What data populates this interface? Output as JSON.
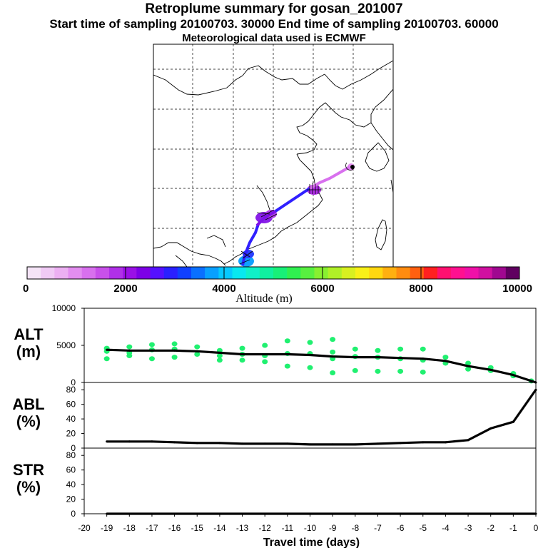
{
  "header": {
    "title": "Retroplume summary for gosan_201007",
    "subtitle": "Start time of sampling 20100703. 30000     End time of sampling 20100703. 60000",
    "met_line": "Meteorological data used is ECMWF"
  },
  "map": {
    "track_points": [
      [
        -0.001,
        0.0
      ],
      [
        -0.55,
        0.2
      ],
      [
        -1.0,
        0.4
      ]
    ],
    "labels": []
  },
  "colorbar": {
    "title": "Altitude (m)",
    "ticks": [
      "0",
      "2000",
      "4000",
      "6000",
      "8000",
      "10000"
    ],
    "colors": [
      "#f5e4f7",
      "#f0caf5",
      "#ecb0f2",
      "#e38ef0",
      "#d870ee",
      "#c850ea",
      "#b030e8",
      "#9a10e6",
      "#7d00e6",
      "#5510ff",
      "#2a20ff",
      "#1040ff",
      "#0a70ff",
      "#08a0ff",
      "#06c8ff",
      "#08e8f0",
      "#10f0c8",
      "#10f0a0",
      "#18f078",
      "#30f050",
      "#58f040",
      "#88f030",
      "#b0f028",
      "#d8f020",
      "#f8f018",
      "#ffd810",
      "#ffb010",
      "#ff8c10",
      "#ff6010",
      "#ff2020",
      "#ff1070",
      "#ff1090",
      "#f010a8",
      "#d010a0",
      "#a00890",
      "#600060"
    ]
  },
  "chart_data": [
    {
      "type": "line",
      "panel": "ALT",
      "ylabel_line1": "ALT",
      "ylabel_line2": "(m)",
      "ylim": [
        0,
        10000
      ],
      "yticks": [
        "0",
        "5000",
        "10000"
      ],
      "ytick_values": [
        0,
        5000,
        10000
      ],
      "x": [
        -19,
        -18,
        -17,
        -16,
        -15,
        -14,
        -13,
        -12,
        -11,
        -10,
        -9,
        -8,
        -7,
        -6,
        -5,
        -4,
        -3,
        -2,
        -1,
        0
      ],
      "values": [
        4400,
        4300,
        4300,
        4300,
        4200,
        4000,
        3800,
        3800,
        3800,
        3700,
        3500,
        3400,
        3400,
        3300,
        3200,
        2900,
        2200,
        1700,
        1000,
        0
      ],
      "scatter": {
        "x": [
          -19,
          -19,
          -19,
          -18,
          -18,
          -18,
          -17,
          -17,
          -17,
          -16,
          -16,
          -16,
          -15,
          -15,
          -14,
          -14,
          -14,
          -13,
          -13,
          -13,
          -12,
          -12,
          -12,
          -11,
          -11,
          -11,
          -10,
          -10,
          -10,
          -9,
          -9,
          -9,
          -9,
          -8,
          -8,
          -8,
          -7,
          -7,
          -7,
          -6,
          -6,
          -6,
          -5,
          -5,
          -5,
          -4,
          -4,
          -3,
          -3,
          -2,
          -2,
          -1,
          -1,
          -0.2
        ],
        "y": [
          4600,
          4200,
          3200,
          4800,
          4000,
          3600,
          5100,
          4400,
          3200,
          5200,
          4500,
          3400,
          4800,
          3800,
          4300,
          3600,
          3000,
          4600,
          3800,
          3000,
          5000,
          3600,
          2800,
          5600,
          3900,
          2200,
          5400,
          3900,
          2000,
          5800,
          4100,
          3200,
          1300,
          4500,
          3500,
          1600,
          4300,
          3400,
          1500,
          4500,
          3200,
          1500,
          4500,
          3000,
          1400,
          3400,
          2600,
          2600,
          1800,
          2000,
          1600,
          1200,
          900,
          200
        ]
      }
    },
    {
      "type": "line",
      "panel": "ABL",
      "ylabel_line1": "ABL",
      "ylabel_line2": "(%)",
      "ylim": [
        0,
        90
      ],
      "yticks": [
        "0",
        "20",
        "40",
        "60",
        "80"
      ],
      "ytick_values": [
        0,
        20,
        40,
        60,
        80
      ],
      "x": [
        -19,
        -18,
        -17,
        -16,
        -15,
        -14,
        -13,
        -12,
        -11,
        -10,
        -9,
        -8,
        -7,
        -6,
        -5,
        -4,
        -3,
        -2,
        -1,
        0
      ],
      "values": [
        9,
        9,
        9,
        8,
        7,
        7,
        6,
        6,
        6,
        5,
        5,
        5,
        6,
        7,
        8,
        8,
        11,
        27,
        36,
        80
      ]
    },
    {
      "type": "line",
      "panel": "STR",
      "ylabel_line1": "STR",
      "ylabel_line2": "(%)",
      "ylim": [
        0,
        90
      ],
      "yticks": [
        "0",
        "20",
        "40",
        "60",
        "80"
      ],
      "ytick_values": [
        0,
        20,
        40,
        60,
        80
      ],
      "x": [
        -19,
        0
      ],
      "values": [
        0,
        0
      ],
      "xlabel": "Travel time (days)",
      "xticks": [
        "-20",
        "-19",
        "-18",
        "-17",
        "-16",
        "-15",
        "-14",
        "-13",
        "-12",
        "-11",
        "-10",
        "-9",
        "-8",
        "-7",
        "-6",
        "-5",
        "-4",
        "-3",
        "-2",
        "-1",
        "0"
      ],
      "xtick_values": [
        -20,
        -19,
        -18,
        -17,
        -16,
        -15,
        -14,
        -13,
        -12,
        -11,
        -10,
        -9,
        -8,
        -7,
        -6,
        -5,
        -4,
        -3,
        -2,
        -1,
        0
      ],
      "xlim": [
        -20,
        0
      ]
    }
  ]
}
